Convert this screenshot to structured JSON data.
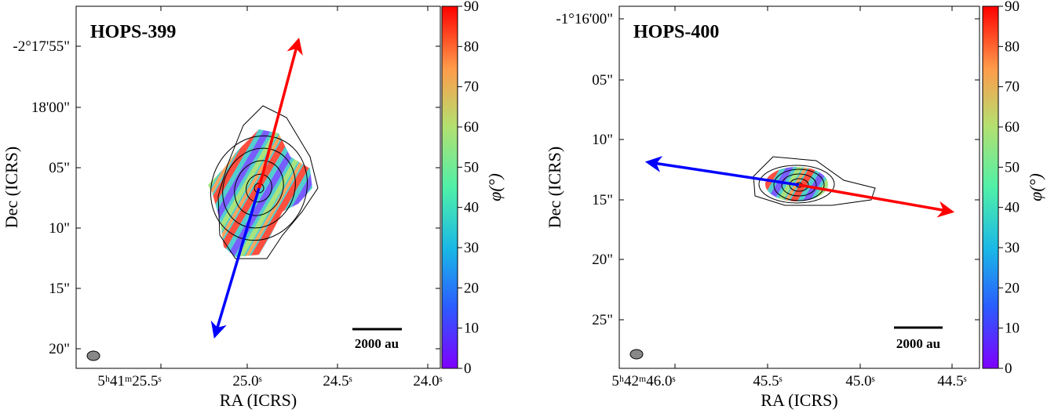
{
  "figure": {
    "panels": [
      {
        "title": "HOPS-399",
        "xlabel": "RA (ICRS)",
        "ylabel": "Dec (ICRS)",
        "xticks": [
          "5ʰ41ᵐ25.5ˢ",
          "25.0ˢ",
          "24.5ˢ",
          "24.0ˢ"
        ],
        "yticks": [
          "-2°17'55\"",
          "18'00\"",
          "05\"",
          "10\"",
          "15\"",
          "20\""
        ],
        "colorbar_label": "φ(°)",
        "clim": [
          0,
          90
        ],
        "cticks": [
          0,
          10,
          20,
          30,
          40,
          50,
          60,
          70,
          80,
          90
        ],
        "scalebar": "2000 au"
      },
      {
        "title": "HOPS-400",
        "xlabel": "RA (ICRS)",
        "ylabel": "Dec (ICRS)",
        "xticks": [
          "5ʰ42ᵐ46.0ˢ",
          "45.5ˢ",
          "45.0ˢ",
          "44.5ˢ"
        ],
        "yticks": [
          "-1°16'00\"",
          "05\"",
          "10\"",
          "15\"",
          "20\"",
          "25\""
        ],
        "colorbar_label": "φ(°)",
        "clim": [
          0,
          90
        ],
        "cticks": [
          0,
          10,
          20,
          30,
          40,
          50,
          60,
          70,
          80,
          90
        ],
        "scalebar": "2000 au"
      }
    ]
  }
}
